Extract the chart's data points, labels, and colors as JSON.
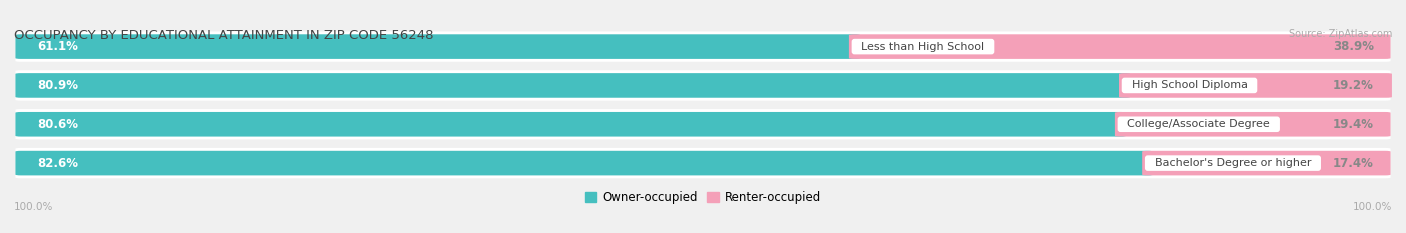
{
  "title": "OCCUPANCY BY EDUCATIONAL ATTAINMENT IN ZIP CODE 56248",
  "source": "Source: ZipAtlas.com",
  "categories": [
    "Less than High School",
    "High School Diploma",
    "College/Associate Degree",
    "Bachelor's Degree or higher"
  ],
  "owner_pct": [
    61.1,
    80.9,
    80.6,
    82.6
  ],
  "renter_pct": [
    38.9,
    19.2,
    19.4,
    17.4
  ],
  "owner_color": "#45bfbf",
  "renter_color": "#f4a0b8",
  "bg_color": "#f0f0f0",
  "row_bg_color": "#ffffff",
  "title_color": "#444444",
  "axis_label_color": "#aaaaaa",
  "legend_owner": "Owner-occupied",
  "legend_renter": "Renter-occupied",
  "left_axis_label": "100.0%",
  "right_axis_label": "100.0%"
}
